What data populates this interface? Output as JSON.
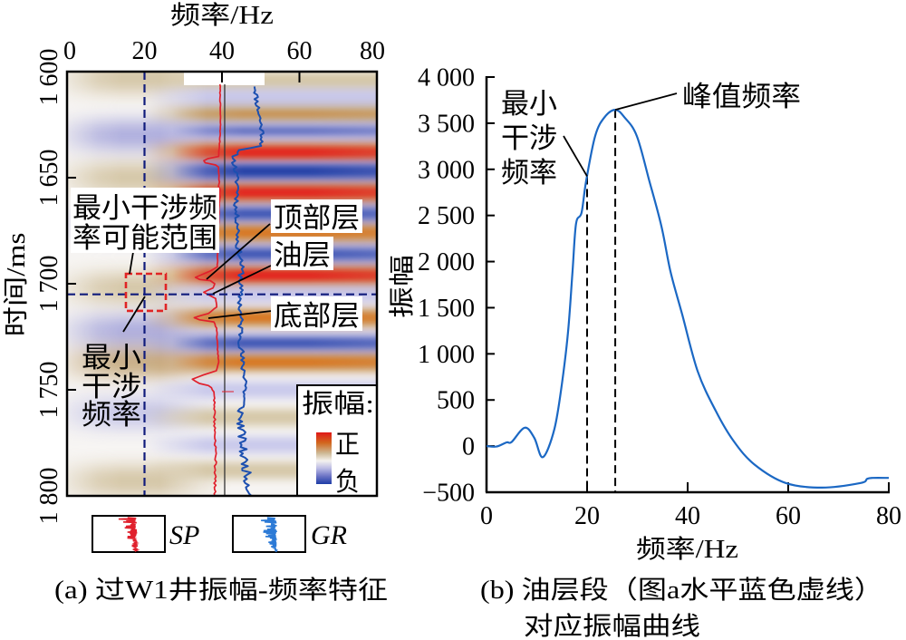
{
  "colors": {
    "sp_log": "#e0202c",
    "gr_log": "#1c4fb0",
    "gr_legend": "#2c7ad6",
    "amplitude_curve": "#1b68c4",
    "guide_dashed": "#111c7c",
    "range_box": "#e02424",
    "positive_strong": "#e3241a",
    "negative_strong": "#2240a6"
  },
  "chart_data": [
    {
      "type": "heatmap",
      "title": "(a) 过W1井振幅-频率特征",
      "xlabel": "频率/Hz",
      "ylabel": "时间/ms",
      "xlim": [
        0,
        80
      ],
      "ylim": [
        1600,
        1800
      ],
      "xticks": [
        0,
        20,
        40,
        60,
        80
      ],
      "xtick_labels": [
        "0",
        "20",
        "40",
        "60",
        "80"
      ],
      "yticks": [
        1600,
        1650,
        1700,
        1750,
        1800
      ],
      "ytick_labels": [
        "1 600",
        "1 650",
        "1 700",
        "1 750",
        "1 800"
      ],
      "colorbar": {
        "title": "振幅:",
        "positive_label": "正",
        "negative_label": "负"
      },
      "high_frequency_bands": [
        {
          "t_ms": 1604,
          "amp": 0.3
        },
        {
          "t_ms": 1612,
          "amp": -0.3
        },
        {
          "t_ms": 1620,
          "amp": 0.45
        },
        {
          "t_ms": 1628,
          "amp": -0.55
        },
        {
          "t_ms": 1638,
          "amp": 1.0
        },
        {
          "t_ms": 1647,
          "amp": -0.95
        },
        {
          "t_ms": 1657,
          "amp": 0.95
        },
        {
          "t_ms": 1667,
          "amp": -0.6
        },
        {
          "t_ms": 1676,
          "amp": 0.75
        },
        {
          "t_ms": 1686,
          "amp": -0.8
        },
        {
          "t_ms": 1696,
          "amp": 0.85
        },
        {
          "t_ms": 1705,
          "amp": -0.25
        },
        {
          "t_ms": 1716,
          "amp": 0.6
        },
        {
          "t_ms": 1728,
          "amp": -0.75
        },
        {
          "t_ms": 1737,
          "amp": 0.7
        },
        {
          "t_ms": 1750,
          "amp": -0.35
        },
        {
          "t_ms": 1763,
          "amp": 0.3
        },
        {
          "t_ms": 1776,
          "amp": -0.3
        },
        {
          "t_ms": 1788,
          "amp": 0.3
        }
      ],
      "low_frequency_bands": [
        {
          "t_ms": 1603,
          "amp": 0.35
        },
        {
          "t_ms": 1630,
          "amp": -0.4
        },
        {
          "t_ms": 1650,
          "amp": 0.35
        },
        {
          "t_ms": 1672,
          "amp": -0.3
        },
        {
          "t_ms": 1702,
          "amp": 0.4
        },
        {
          "t_ms": 1722,
          "amp": -0.35
        },
        {
          "t_ms": 1737,
          "amp": 0.5
        },
        {
          "t_ms": 1761,
          "amp": -0.3
        },
        {
          "t_ms": 1793,
          "amp": 0.35
        }
      ],
      "guides": {
        "min_interference_freq_hz": 20,
        "oil_layer_time_ms": 1705
      },
      "min_interference_range_box": {
        "freq_hz": [
          15.2,
          25.5
        ],
        "time_ms": [
          1695.3,
          1712.8
        ]
      },
      "well_track_hz": 40.7,
      "logs": {
        "SP": [
          [
            1606,
            39.5
          ],
          [
            1626,
            39.6
          ],
          [
            1637,
            39.3
          ],
          [
            1640,
            39.1
          ],
          [
            1641,
            36.5
          ],
          [
            1642,
            35.3
          ],
          [
            1643,
            35.6
          ],
          [
            1644,
            38.4
          ],
          [
            1645,
            39.1
          ],
          [
            1652,
            39.3
          ],
          [
            1654,
            39.1
          ],
          [
            1656,
            39.5
          ],
          [
            1673,
            39.1
          ],
          [
            1686,
            38.9
          ],
          [
            1692,
            38.8
          ],
          [
            1694,
            37.0
          ],
          [
            1697,
            33.2
          ],
          [
            1698,
            34.2
          ],
          [
            1698.5,
            37.0
          ],
          [
            1700,
            38.1
          ],
          [
            1702,
            37.7
          ],
          [
            1704,
            35.3
          ],
          [
            1706,
            37.4
          ],
          [
            1707,
            38.4
          ],
          [
            1711,
            38.6
          ],
          [
            1714,
            36.5
          ],
          [
            1716,
            32.8
          ],
          [
            1717,
            34.2
          ],
          [
            1718,
            37.9
          ],
          [
            1721,
            38.6
          ],
          [
            1729,
            38.8
          ],
          [
            1737,
            39.1
          ],
          [
            1741,
            38.6
          ],
          [
            1743,
            35.3
          ],
          [
            1745,
            32.3
          ],
          [
            1747,
            34.2
          ],
          [
            1748,
            36.5
          ],
          [
            1749,
            37.2
          ],
          [
            1751,
            37.9
          ],
          [
            1754,
            38.1
          ],
          [
            1767,
            38.1
          ],
          [
            1780,
            38.4
          ],
          [
            1800,
            38.1
          ]
        ],
        "GR": [
          [
            1607,
            48.7
          ],
          [
            1613,
            48.9
          ],
          [
            1622,
            49.8
          ],
          [
            1630,
            50.5
          ],
          [
            1635,
            50.3
          ],
          [
            1636,
            47.0
          ],
          [
            1637,
            44.0
          ],
          [
            1641,
            43.0
          ],
          [
            1647,
            43.5
          ],
          [
            1656,
            44.2
          ],
          [
            1665,
            43.5
          ],
          [
            1673,
            44.2
          ],
          [
            1682,
            44.0
          ],
          [
            1688,
            44.9
          ],
          [
            1694,
            45.1
          ],
          [
            1701,
            44.7
          ],
          [
            1712,
            44.7
          ],
          [
            1724,
            44.9
          ],
          [
            1737,
            45.1
          ],
          [
            1746,
            46.3
          ],
          [
            1754,
            45.6
          ],
          [
            1763,
            44.7
          ],
          [
            1771,
            45.1
          ],
          [
            1780,
            45.4
          ],
          [
            1788,
            46.3
          ],
          [
            1797,
            47.0
          ],
          [
            1800,
            47.6
          ]
        ]
      },
      "annotations": {
        "range_label": [
          "最小干涉频",
          "率可能范围"
        ],
        "top_layer": "顶部层",
        "oil_layer": "油层",
        "bottom_layer": "底部层",
        "min_freq_label": [
          "最小",
          "干涉",
          "频率"
        ]
      },
      "log_legend": [
        "SP",
        "GR"
      ]
    },
    {
      "type": "line",
      "title": "(b) 油层段（图a水平蓝色虚线）",
      "title_line2": "对应振幅曲线",
      "xlabel": "频率/Hz",
      "ylabel": "振幅",
      "xlim": [
        0,
        80
      ],
      "ylim": [
        -500,
        4000
      ],
      "xticks": [
        0,
        20,
        40,
        60,
        80
      ],
      "xtick_labels": [
        "0",
        "20",
        "40",
        "60",
        "80"
      ],
      "yticks": [
        -500,
        0,
        500,
        1000,
        1500,
        2000,
        2500,
        3000,
        3500,
        4000
      ],
      "ytick_labels": [
        "−500",
        "0",
        "500",
        "1 000",
        "1 500",
        "2 000",
        "2 500",
        "3 000",
        "3 500",
        "4 000"
      ],
      "series": [
        {
          "x": [
            0,
            2,
            4,
            5,
            7.6,
            9.5,
            11.2,
            13.5,
            15,
            16.2,
            17.1,
            17.8,
            18.9,
            19.8,
            21.6,
            23.4,
            25.6,
            27.5,
            29.9,
            32.4,
            34.8,
            36.6,
            38.9,
            42,
            45.6,
            49.2,
            53.3,
            59.5,
            66.7,
            74.4,
            75.7,
            76.8,
            80
          ],
          "y": [
            0,
            -5,
            40,
            45,
            200,
            90,
            -120,
            185,
            680,
            1230,
            1890,
            2410,
            2530,
            2870,
            3360,
            3560,
            3645,
            3560,
            3360,
            2870,
            2380,
            1890,
            1430,
            810,
            380,
            50,
            -200,
            -400,
            -450,
            -400,
            -355,
            -345,
            -345
          ]
        }
      ],
      "markers": {
        "min_interference_freq_hz": 20,
        "peak_freq_hz": 25.6,
        "peak_amplitude": 3645
      },
      "annotations": {
        "min_freq_label": [
          "最小",
          "干涉",
          "频率"
        ],
        "peak_label": "峰值频率"
      }
    }
  ]
}
